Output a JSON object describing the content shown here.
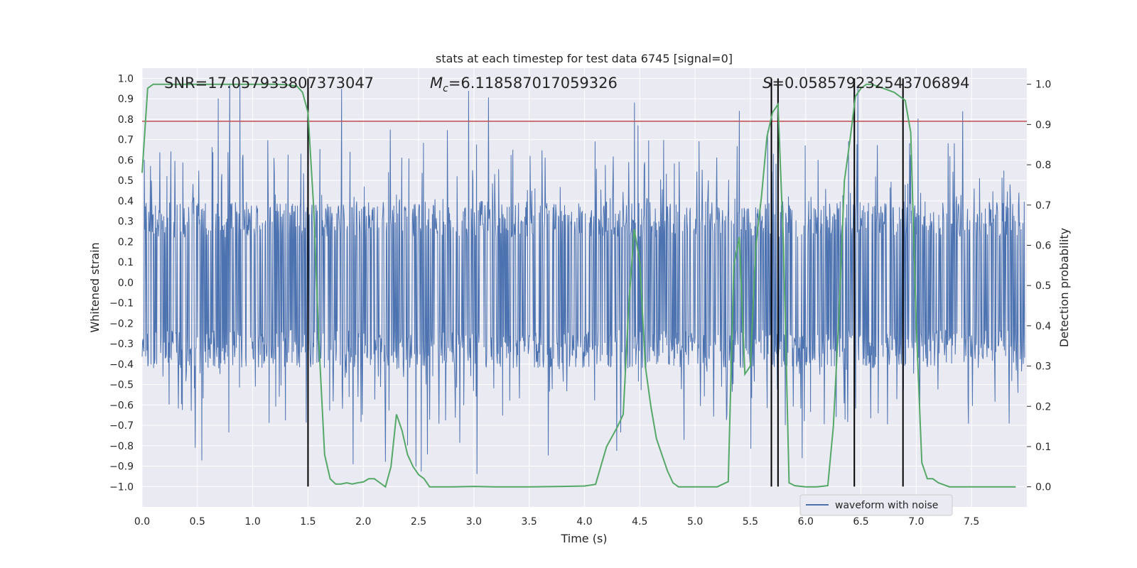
{
  "chart_data": {
    "type": "line",
    "title": "stats at each timestep for test data 6745 [signal=0]",
    "xlabel": "Time (s)",
    "ylabel_left": "Whitened strain",
    "ylabel_right": "Detection probability",
    "xlim": [
      0.0,
      8.0
    ],
    "ylim_left": [
      -1.1,
      1.05
    ],
    "ylim_right": [
      -0.05,
      1.04
    ],
    "xticks": [
      "0.0",
      "0.5",
      "1.0",
      "1.5",
      "2.0",
      "2.5",
      "3.0",
      "3.5",
      "4.0",
      "4.5",
      "5.0",
      "5.5",
      "6.0",
      "6.5",
      "7.0",
      "7.5"
    ],
    "yticks_left": [
      "1.0",
      "0.9",
      "0.8",
      "0.7",
      "0.6",
      "0.5",
      "0.4",
      "0.3",
      "0.2",
      "0.1",
      "0.0",
      "-0.1",
      "-0.2",
      "-0.3",
      "-0.4",
      "-0.5",
      "-0.6",
      "-0.7",
      "-0.8",
      "-0.9",
      "-1.0"
    ],
    "yticks_right": [
      "1.0",
      "0.9",
      "0.8",
      "0.7",
      "0.6",
      "0.5",
      "0.4",
      "0.3",
      "0.2",
      "0.1",
      "0.0"
    ],
    "grid": true,
    "legend": {
      "entries": [
        {
          "label": "waveform with noise",
          "color": "#4c72b0"
        }
      ],
      "position": "bottom-right"
    },
    "annotations": {
      "snr": "SNR=17.057933807373047",
      "mc_symbol": "M",
      "mc_sub": "c",
      "mc_value": "=6.118587017059326",
      "s_symbol": "S",
      "s_value": "=0.058579232543706894"
    },
    "threshold": {
      "value": 0.79,
      "axis": "left",
      "color": "#c44e52"
    },
    "vlines": {
      "x": [
        1.5,
        5.69,
        5.75,
        6.44,
        6.88
      ],
      "y_range": [
        -1.0,
        1.0
      ],
      "color": "#000000"
    },
    "series": [
      {
        "name": "waveform with noise",
        "axis": "left",
        "color": "#4c72b0",
        "kind": "noise-band",
        "typical_envelope": [
          -0.42,
          0.4
        ],
        "max": 0.97,
        "min": -1.0
      },
      {
        "name": "detection probability",
        "axis": "right",
        "color": "#55a868",
        "x": [
          0.0,
          0.05,
          0.1,
          0.15,
          0.3,
          0.5,
          0.8,
          1.0,
          1.2,
          1.3,
          1.4,
          1.45,
          1.5,
          1.55,
          1.6,
          1.65,
          1.7,
          1.75,
          1.8,
          1.85,
          1.9,
          1.95,
          2.0,
          2.05,
          2.1,
          2.15,
          2.2,
          2.25,
          2.3,
          2.35,
          2.4,
          2.45,
          2.5,
          2.55,
          2.6,
          2.7,
          2.8,
          3.0,
          3.2,
          3.5,
          3.8,
          4.0,
          4.1,
          4.2,
          4.3,
          4.35,
          4.4,
          4.45,
          4.5,
          4.55,
          4.6,
          4.65,
          4.7,
          4.75,
          4.8,
          4.85,
          4.9,
          5.0,
          5.1,
          5.2,
          5.3,
          5.35,
          5.4,
          5.45,
          5.5,
          5.55,
          5.6,
          5.65,
          5.7,
          5.75,
          5.8,
          5.85,
          5.9,
          6.0,
          6.1,
          6.2,
          6.25,
          6.3,
          6.35,
          6.4,
          6.45,
          6.5,
          6.55,
          6.6,
          6.7,
          6.8,
          6.9,
          6.95,
          7.0,
          7.05,
          7.1,
          7.15,
          7.2,
          7.3,
          7.5,
          7.7,
          7.9
        ],
        "values": [
          0.78,
          0.99,
          1.0,
          1.0,
          1.0,
          1.0,
          1.0,
          1.0,
          1.0,
          0.999,
          0.995,
          0.98,
          0.93,
          0.7,
          0.35,
          0.08,
          0.02,
          0.007,
          0.007,
          0.01,
          0.007,
          0.01,
          0.012,
          0.02,
          0.02,
          0.01,
          0.0,
          0.05,
          0.18,
          0.14,
          0.08,
          0.05,
          0.03,
          0.02,
          0.0,
          0.0,
          0.0,
          0.001,
          0.0,
          0.0,
          0.001,
          0.002,
          0.006,
          0.1,
          0.15,
          0.18,
          0.45,
          0.64,
          0.56,
          0.3,
          0.2,
          0.12,
          0.08,
          0.04,
          0.01,
          0.0,
          0.0,
          0.0,
          0.0,
          0.0,
          0.013,
          0.55,
          0.62,
          0.28,
          0.3,
          0.6,
          0.72,
          0.87,
          0.93,
          0.95,
          0.6,
          0.01,
          0.003,
          0.0,
          0.0,
          0.003,
          0.15,
          0.42,
          0.76,
          0.86,
          0.97,
          0.99,
          1.0,
          1.0,
          0.99,
          0.98,
          0.96,
          0.88,
          0.4,
          0.06,
          0.02,
          0.02,
          0.01,
          0.0,
          0.0,
          0.0,
          0.0
        ]
      }
    ]
  }
}
